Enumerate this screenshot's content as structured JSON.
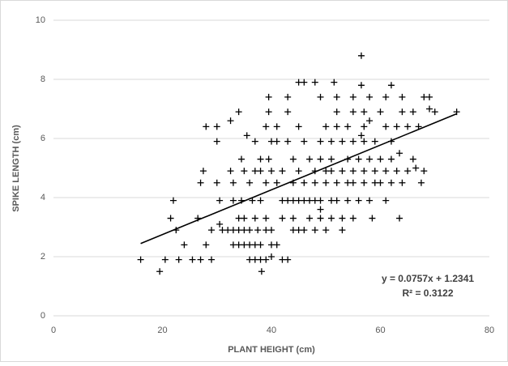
{
  "chart_data": {
    "type": "scatter",
    "x_label": "PLANT HEIGHT (cm)",
    "y_label": "SPIKE LENGTH (cm)",
    "xlim": [
      0,
      80
    ],
    "xticks": [
      0,
      20,
      40,
      60,
      80
    ],
    "ylim": [
      0,
      10
    ],
    "yticks": [
      0,
      2,
      4,
      6,
      8,
      10
    ],
    "grid": true,
    "color": "#000000",
    "marker": "+",
    "x": [
      16,
      20.5,
      23,
      25.5,
      27,
      29,
      36,
      37,
      38,
      39,
      42,
      43,
      19.5,
      38.2,
      40,
      24,
      28,
      33,
      34,
      35,
      36,
      37,
      38,
      40,
      41,
      22.5,
      29,
      31,
      32,
      33,
      34,
      35,
      36,
      37.5,
      39,
      40,
      44,
      45,
      46,
      48,
      50,
      53,
      30.5,
      21.5,
      26.5,
      34,
      35,
      37,
      39,
      42,
      44,
      47,
      49,
      51,
      53,
      55,
      58.5,
      63.5,
      49,
      22,
      30.5,
      33,
      34.5,
      36.5,
      38,
      42,
      43,
      44,
      45,
      46,
      47,
      48,
      49,
      51,
      52,
      54,
      56,
      58,
      61,
      27,
      30,
      33,
      36,
      39,
      41,
      44,
      46,
      48,
      50,
      52,
      54,
      55,
      57,
      59,
      60,
      62,
      64,
      67.5,
      27.5,
      32.5,
      35,
      37,
      38,
      40,
      42,
      45,
      48,
      50,
      51,
      53,
      55,
      57,
      59,
      61,
      63,
      65,
      68,
      34.5,
      38,
      39.5,
      44,
      47,
      49,
      51,
      54,
      56,
      58,
      60,
      62,
      66,
      30,
      37,
      40,
      41,
      43,
      46,
      49,
      51,
      53,
      55,
      57,
      59,
      62,
      35.5,
      56.5,
      28,
      30,
      39,
      41,
      45,
      50,
      52,
      54,
      57,
      61,
      63,
      65,
      67,
      32.5,
      58,
      34,
      39.5,
      43,
      52,
      55,
      57,
      60,
      64,
      66,
      70,
      74,
      39.5,
      43,
      49,
      52,
      55,
      58,
      61,
      64,
      68,
      69,
      45,
      46,
      48,
      51.5,
      56.5,
      62,
      56.5,
      69,
      66.5,
      63.5
    ],
    "values": [
      1.9,
      1.9,
      1.9,
      1.9,
      1.9,
      1.9,
      1.9,
      1.9,
      1.9,
      1.9,
      1.9,
      1.9,
      1.5,
      1.5,
      2,
      2.4,
      2.4,
      2.4,
      2.4,
      2.4,
      2.4,
      2.4,
      2.4,
      2.4,
      2.4,
      2.9,
      2.9,
      2.9,
      2.9,
      2.9,
      2.9,
      2.9,
      2.9,
      2.9,
      2.9,
      2.9,
      2.9,
      2.9,
      2.9,
      2.9,
      2.9,
      2.9,
      3.1,
      3.3,
      3.3,
      3.3,
      3.3,
      3.3,
      3.3,
      3.3,
      3.3,
      3.3,
      3.3,
      3.3,
      3.3,
      3.3,
      3.3,
      3.3,
      3.6,
      3.9,
      3.9,
      3.9,
      3.9,
      3.9,
      3.9,
      3.9,
      3.9,
      3.9,
      3.9,
      3.9,
      3.9,
      3.9,
      3.9,
      3.9,
      3.9,
      3.9,
      3.9,
      3.9,
      3.9,
      4.5,
      4.5,
      4.5,
      4.5,
      4.5,
      4.5,
      4.5,
      4.5,
      4.5,
      4.5,
      4.5,
      4.5,
      4.5,
      4.5,
      4.5,
      4.5,
      4.5,
      4.5,
      4.5,
      4.9,
      4.9,
      4.9,
      4.9,
      4.9,
      4.9,
      4.9,
      4.9,
      4.9,
      4.9,
      4.9,
      4.9,
      4.9,
      4.9,
      4.9,
      4.9,
      4.9,
      4.9,
      4.9,
      5.3,
      5.3,
      5.3,
      5.3,
      5.3,
      5.3,
      5.3,
      5.3,
      5.3,
      5.3,
      5.3,
      5.3,
      5.3,
      5.9,
      5.9,
      5.9,
      5.9,
      5.9,
      5.9,
      5.9,
      5.9,
      5.9,
      5.9,
      5.9,
      5.9,
      5.9,
      6.1,
      6.1,
      6.4,
      6.4,
      6.4,
      6.4,
      6.4,
      6.4,
      6.4,
      6.4,
      6.4,
      6.4,
      6.4,
      6.4,
      6.4,
      6.6,
      6.6,
      6.9,
      6.9,
      6.9,
      6.9,
      6.9,
      6.9,
      6.9,
      6.9,
      6.9,
      6.9,
      6.9,
      7.4,
      7.4,
      7.4,
      7.4,
      7.4,
      7.4,
      7.4,
      7.4,
      7.4,
      7.4,
      7.9,
      7.9,
      7.9,
      7.9,
      7.8,
      7.8,
      8.8,
      7,
      5,
      5.5
    ],
    "trendline": {
      "slope": 0.0757,
      "intercept": 1.2341,
      "x": [
        16,
        74
      ],
      "equation": "y = 0.0757x + 1.2341",
      "r_squared": "R² = 0.3122"
    }
  }
}
